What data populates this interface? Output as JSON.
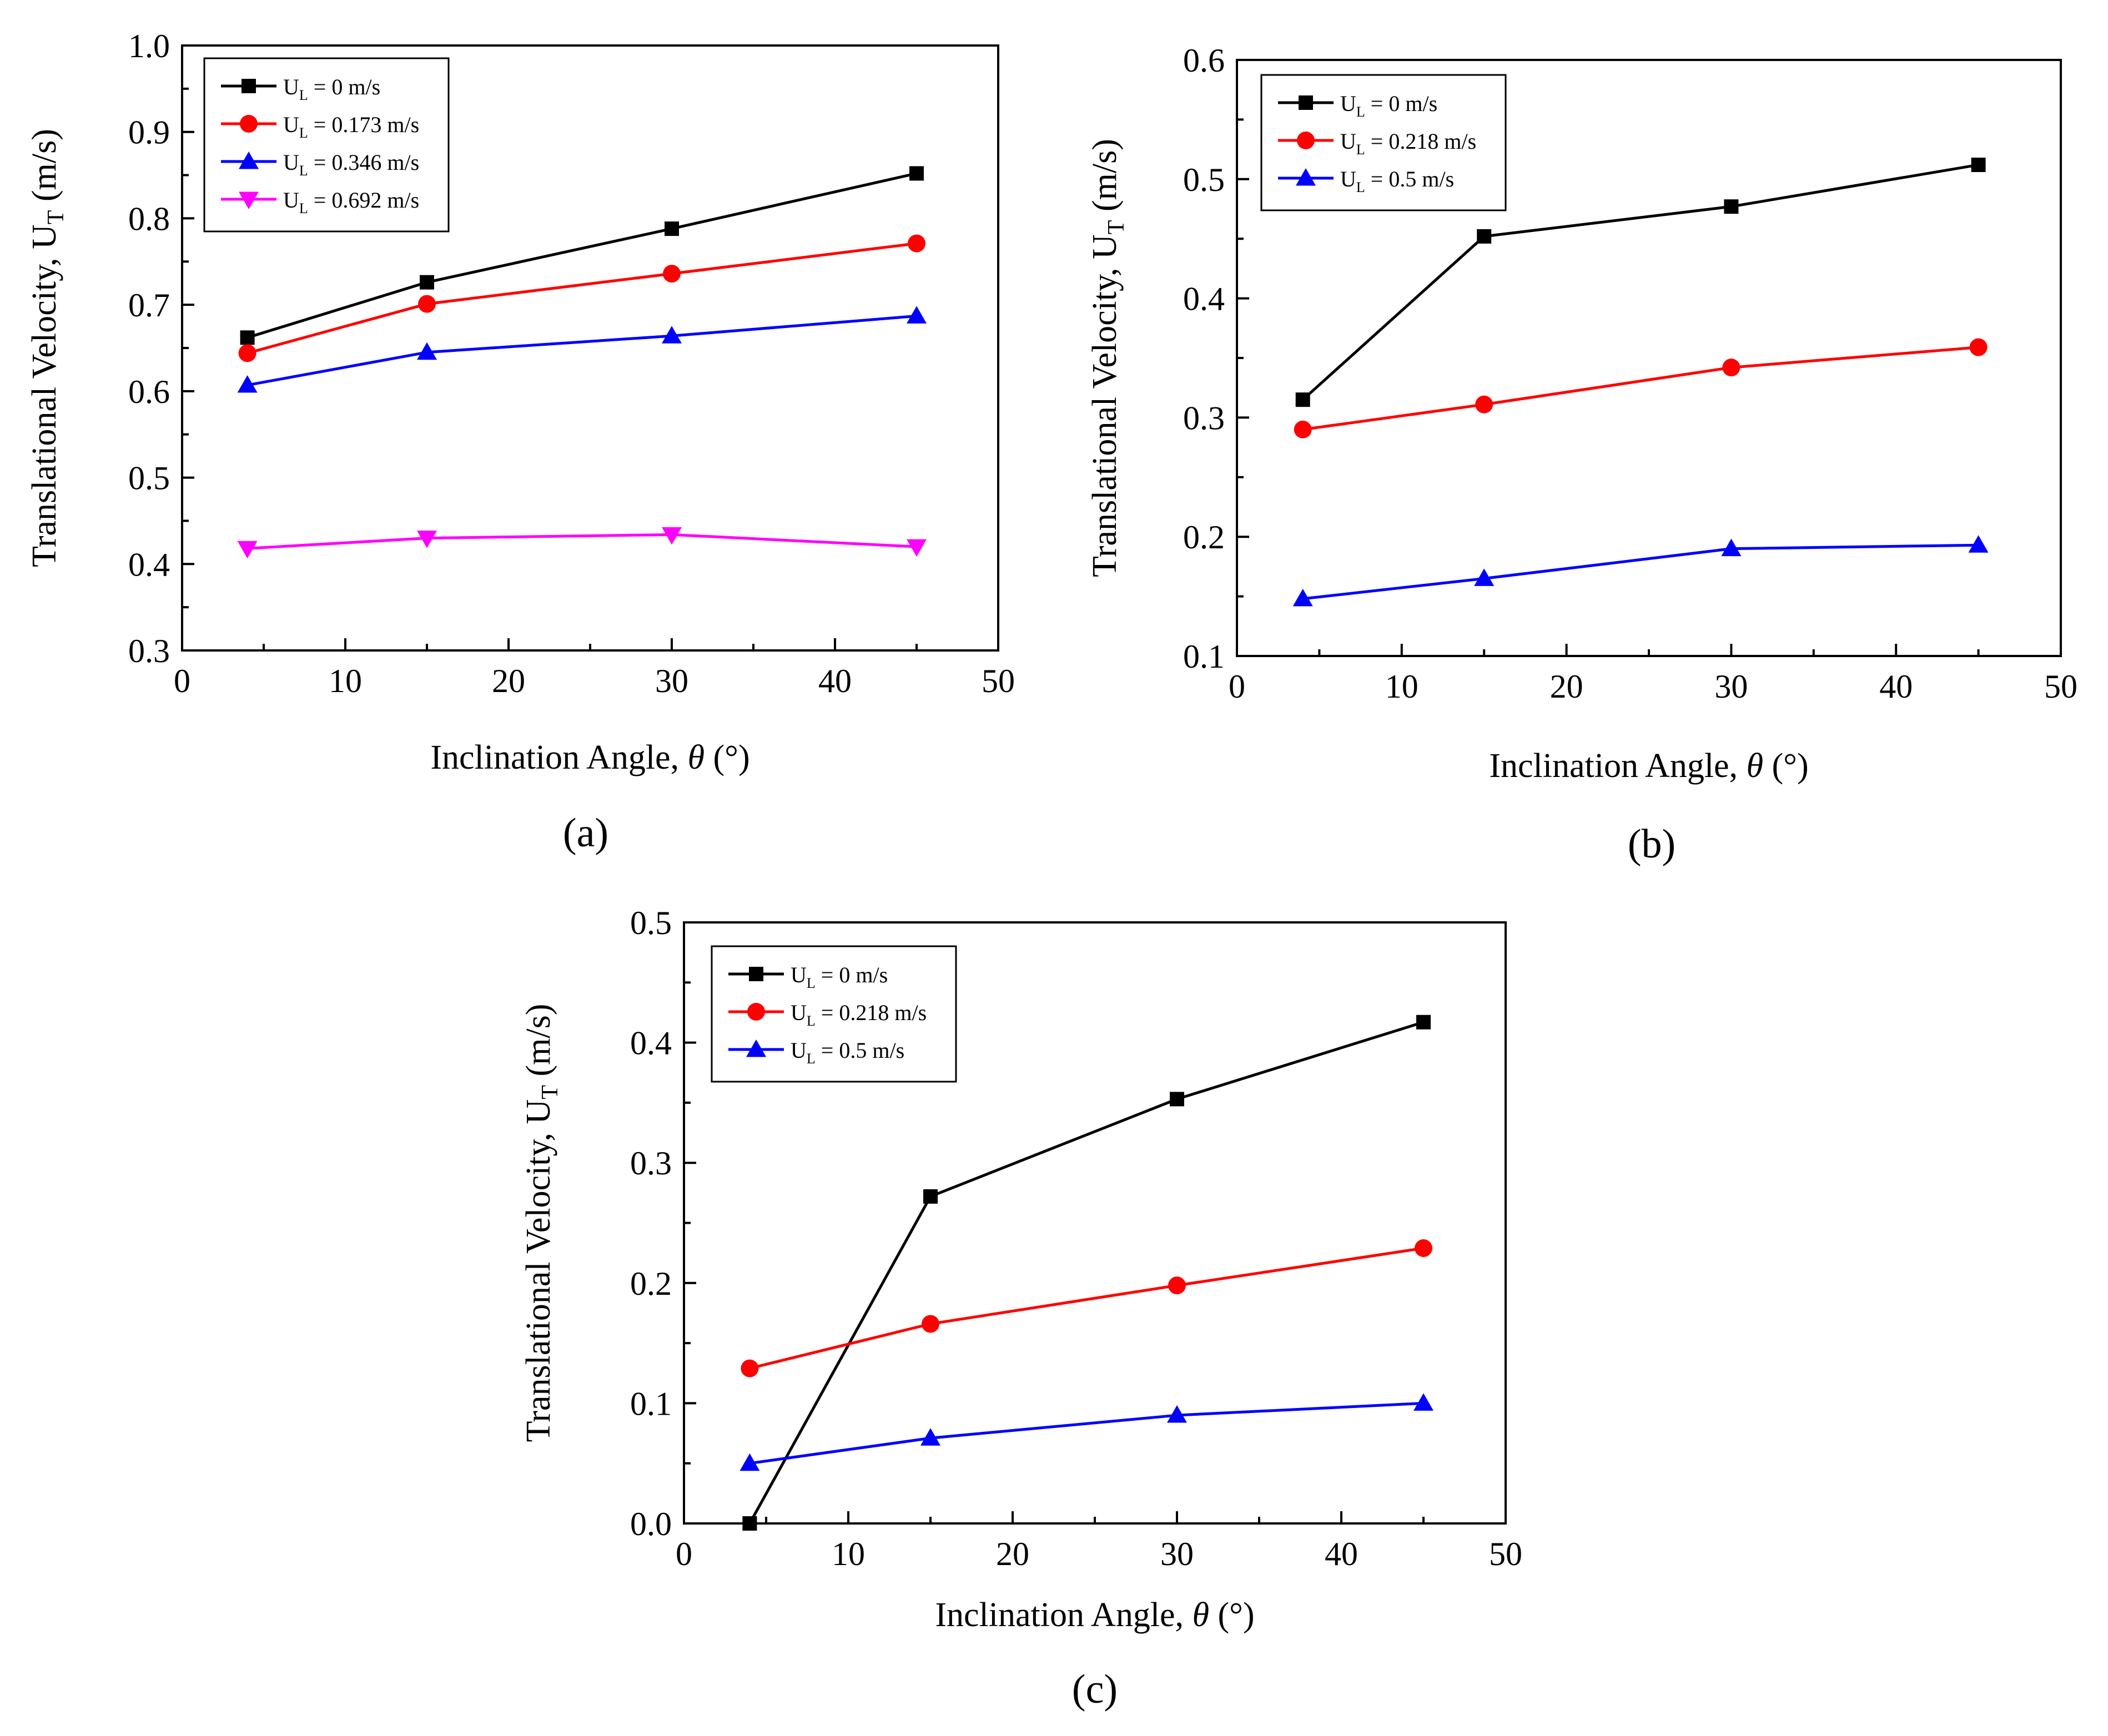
{
  "chart_data": [
    {
      "type": "line",
      "panel_label": "(a)",
      "xlabel": "Inclination Angle, θ (°)",
      "ylabel": "Translational Velocity, U_T (m/s)",
      "ylabel_main": "Translational Velocity, U",
      "ylabel_sub": "T",
      "ylabel_tail": " (m/s)",
      "xlim": [
        0,
        50
      ],
      "ylim": [
        0.3,
        1.0
      ],
      "xticks": [
        0,
        10,
        20,
        30,
        40,
        50
      ],
      "xtick_labels": [
        "0",
        "10",
        "20",
        "30",
        "40",
        "50"
      ],
      "yticks": [
        0.3,
        0.4,
        0.5,
        0.6,
        0.7,
        0.8,
        0.9,
        1.0
      ],
      "ytick_labels": [
        "0.3",
        "0.4",
        "0.5",
        "0.6",
        "0.7",
        "0.8",
        "0.9",
        "1.0"
      ],
      "legend_position": "top-left",
      "x": [
        4,
        15,
        30,
        45
      ],
      "series": [
        {
          "name": "U_L = 0 m/s",
          "legend_main": "U",
          "legend_sub": "L",
          "legend_tail": " = 0 m/s",
          "color": "#000000",
          "marker": "square",
          "values": [
            0.662,
            0.726,
            0.788,
            0.852
          ]
        },
        {
          "name": "U_L = 0.173 m/s",
          "legend_main": "U",
          "legend_sub": "L",
          "legend_tail": " = 0.173 m/s",
          "color": "#ff0000",
          "marker": "circle",
          "values": [
            0.644,
            0.701,
            0.736,
            0.771
          ]
        },
        {
          "name": "U_L = 0.346 m/s",
          "legend_main": "U",
          "legend_sub": "L",
          "legend_tail": " = 0.346 m/s",
          "color": "#0000ff",
          "marker": "triangle-up",
          "values": [
            0.607,
            0.645,
            0.664,
            0.687
          ]
        },
        {
          "name": "U_L = 0.692 m/s",
          "legend_main": "U",
          "legend_sub": "L",
          "legend_tail": " = 0.692 m/s",
          "color": "#ff00ff",
          "marker": "triangle-down",
          "values": [
            0.418,
            0.43,
            0.434,
            0.42
          ]
        }
      ]
    },
    {
      "type": "line",
      "panel_label": "(b)",
      "xlabel": "Inclination Angle, θ (°)",
      "ylabel": "Translational Velocity, U_T (m/s)",
      "ylabel_main": "Translational Velocity, U",
      "ylabel_sub": "T",
      "ylabel_tail": " (m/s)",
      "xlim": [
        0,
        50
      ],
      "ylim": [
        0.1,
        0.6
      ],
      "xticks": [
        0,
        10,
        20,
        30,
        40,
        50
      ],
      "xtick_labels": [
        "0",
        "10",
        "20",
        "30",
        "40",
        "50"
      ],
      "yticks": [
        0.1,
        0.2,
        0.3,
        0.4,
        0.5,
        0.6
      ],
      "ytick_labels": [
        "0.1",
        "0.2",
        "0.3",
        "0.4",
        "0.5",
        "0.6"
      ],
      "legend_position": "top-left",
      "x": [
        4,
        15,
        30,
        45
      ],
      "series": [
        {
          "name": "U_L = 0 m/s",
          "legend_main": "U",
          "legend_sub": "L",
          "legend_tail": " = 0 m/s",
          "color": "#000000",
          "marker": "square",
          "values": [
            0.315,
            0.452,
            0.477,
            0.512
          ]
        },
        {
          "name": "U_L = 0.218 m/s",
          "legend_main": "U",
          "legend_sub": "L",
          "legend_tail": " = 0.218 m/s",
          "color": "#ff0000",
          "marker": "circle",
          "values": [
            0.29,
            0.311,
            0.342,
            0.359
          ]
        },
        {
          "name": "U_L = 0.5 m/s",
          "legend_main": "U",
          "legend_sub": "L",
          "legend_tail": " = 0.5 m/s",
          "color": "#0000ff",
          "marker": "triangle-up",
          "values": [
            0.148,
            0.165,
            0.19,
            0.193
          ]
        }
      ]
    },
    {
      "type": "line",
      "panel_label": "(c)",
      "xlabel": "Inclination Angle, θ (°)",
      "ylabel": "Translational Velocity, U_T (m/s)",
      "ylabel_main": "Translational Velocity, U",
      "ylabel_sub": "T",
      "ylabel_tail": " (m/s)",
      "xlim": [
        0,
        50
      ],
      "ylim": [
        0.0,
        0.5
      ],
      "xticks": [
        0,
        10,
        20,
        30,
        40,
        50
      ],
      "xtick_labels": [
        "0",
        "10",
        "20",
        "30",
        "40",
        "50"
      ],
      "yticks": [
        0.0,
        0.1,
        0.2,
        0.3,
        0.4,
        0.5
      ],
      "ytick_labels": [
        "0.0",
        "0.1",
        "0.2",
        "0.3",
        "0.4",
        "0.5"
      ],
      "legend_position": "top-left",
      "x": [
        4,
        15,
        30,
        45
      ],
      "series": [
        {
          "name": "U_L = 0 m/s",
          "legend_main": "U",
          "legend_sub": "L",
          "legend_tail": " = 0 m/s",
          "color": "#000000",
          "marker": "square",
          "values": [
            0.0,
            0.272,
            0.353,
            0.417
          ]
        },
        {
          "name": "U_L = 0.218 m/s",
          "legend_main": "U",
          "legend_sub": "L",
          "legend_tail": " = 0.218 m/s",
          "color": "#ff0000",
          "marker": "circle",
          "values": [
            0.129,
            0.166,
            0.198,
            0.229
          ]
        },
        {
          "name": "U_L = 0.5 m/s",
          "legend_main": "U",
          "legend_sub": "L",
          "legend_tail": " = 0.5 m/s",
          "color": "#0000ff",
          "marker": "triangle-up",
          "values": [
            0.05,
            0.071,
            0.09,
            0.1
          ]
        }
      ]
    }
  ]
}
